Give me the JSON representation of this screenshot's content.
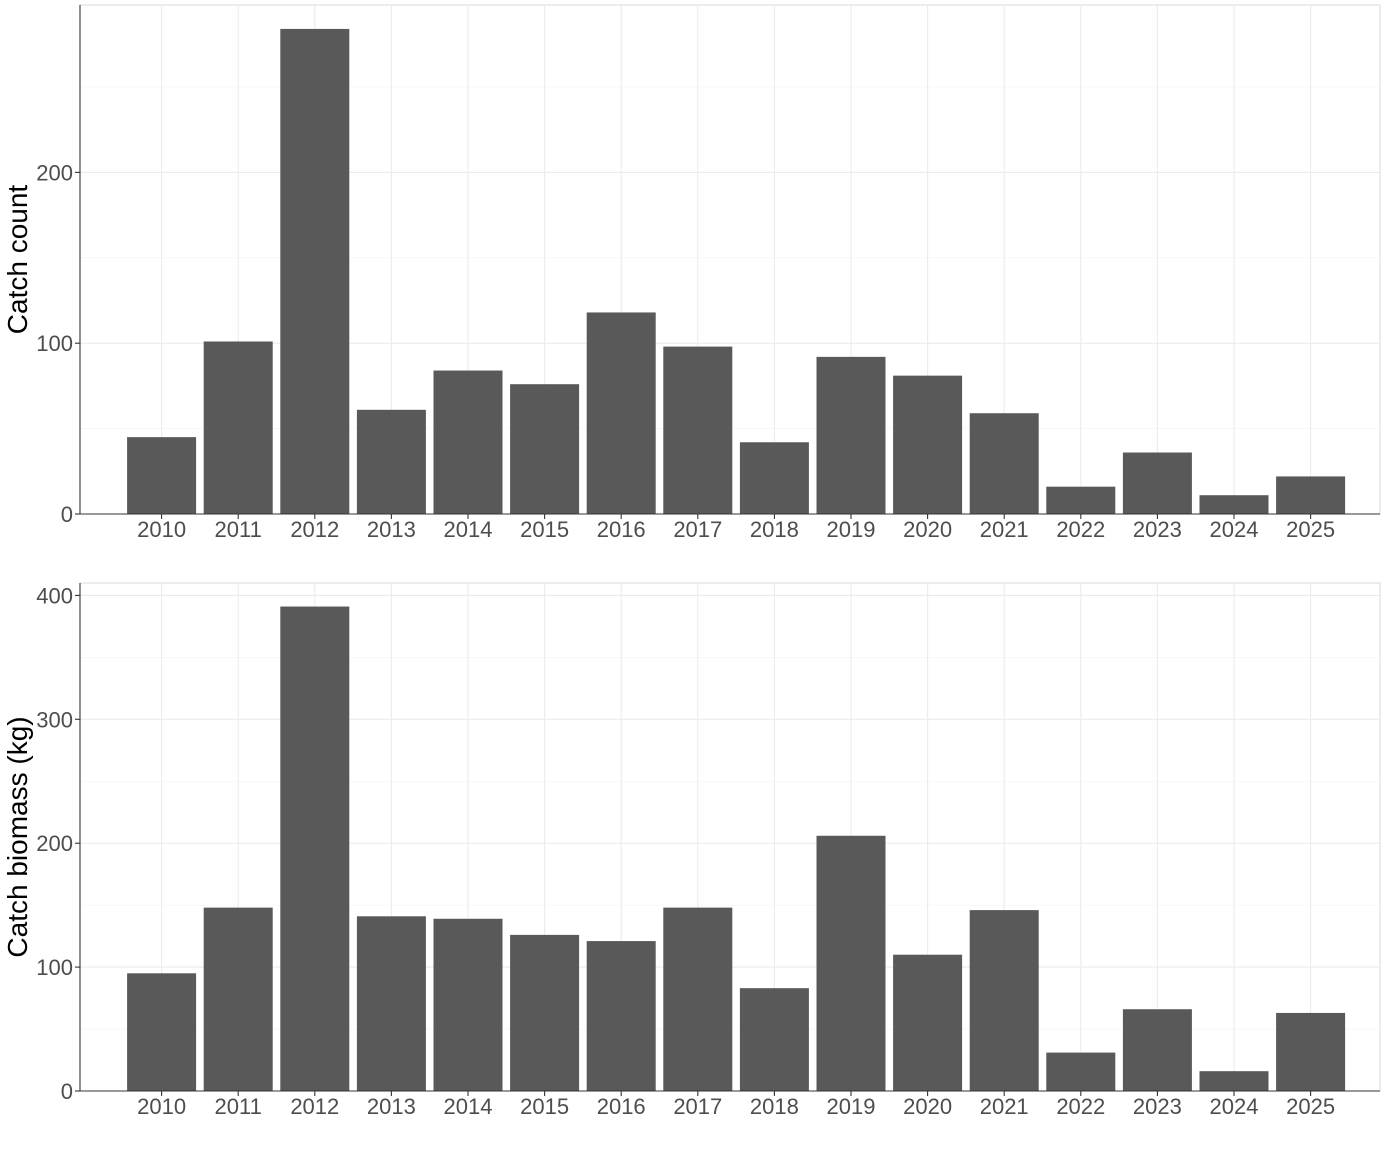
{
  "chart_data": [
    {
      "type": "bar",
      "ylabel": "Catch count",
      "xlabel": "",
      "categories": [
        "2010",
        "2011",
        "2012",
        "2013",
        "2014",
        "2015",
        "2016",
        "2017",
        "2018",
        "2019",
        "2020",
        "2021",
        "2022",
        "2023",
        "2024",
        "2025"
      ],
      "values": [
        45,
        101,
        284,
        61,
        84,
        76,
        118,
        98,
        42,
        92,
        81,
        59,
        16,
        36,
        11,
        22
      ],
      "ylim": [
        0,
        298
      ],
      "yticks": [
        0,
        100,
        200
      ],
      "bar_color": "#595959",
      "grid": true
    },
    {
      "type": "bar",
      "ylabel": "Catch biomass (kg)",
      "xlabel": "",
      "categories": [
        "2010",
        "2011",
        "2012",
        "2013",
        "2014",
        "2015",
        "2016",
        "2017",
        "2018",
        "2019",
        "2020",
        "2021",
        "2022",
        "2023",
        "2024",
        "2025"
      ],
      "values": [
        95,
        148,
        391,
        141,
        139,
        126,
        121,
        148,
        83,
        206,
        110,
        146,
        31,
        66,
        16,
        63
      ],
      "ylim": [
        0,
        410
      ],
      "yticks": [
        0,
        100,
        200,
        300,
        400
      ],
      "bar_color": "#595959",
      "grid": true
    }
  ]
}
